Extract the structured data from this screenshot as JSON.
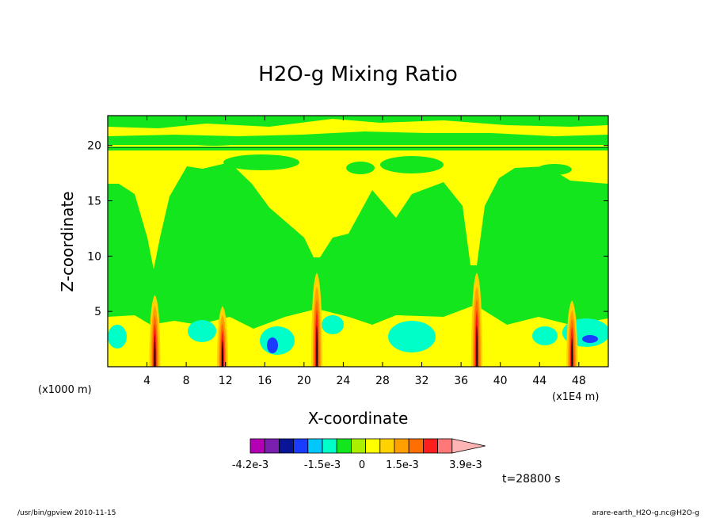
{
  "chart_data": {
    "type": "heatmap",
    "title": "H2O-g Mixing Ratio",
    "xlabel": "X-coordinate",
    "ylabel": "Z-coordinate",
    "x_unit_left": "(x1000 m)",
    "x_unit_right": "(x1E4 m)",
    "x_ticks": [
      4,
      8,
      12,
      16,
      20,
      24,
      28,
      32,
      36,
      40,
      44,
      48
    ],
    "y_ticks": [
      5,
      10,
      15,
      20
    ],
    "xlim": [
      0,
      51
    ],
    "ylim": [
      0,
      22.7
    ],
    "grid": false,
    "colorbar": {
      "colors": [
        "#b400b4",
        "#7a1fb0",
        "#0a1496",
        "#1a3cff",
        "#00c8ff",
        "#00ffc8",
        "#14e61e",
        "#aaee00",
        "#ffff00",
        "#ffd200",
        "#ffa000",
        "#ff6e00",
        "#ff1e1e",
        "#ff7878",
        "#ffb4b4"
      ],
      "labels": [
        "-4.2e-3",
        "-1.5e-3",
        "0",
        "1.5e-3",
        "3.9e-3"
      ]
    },
    "time_label": "t=28800 s",
    "columns": [
      {
        "x": 4.8,
        "top": 6.5
      },
      {
        "x": 11.7,
        "top": 5.5
      },
      {
        "x": 21.3,
        "top": 8.5
      },
      {
        "x": 37.6,
        "top": 8.5
      },
      {
        "x": 47.3,
        "top": 6.0
      }
    ]
  },
  "footer": {
    "left": "/usr/bin/gpview  2010-11-15",
    "right": "arare-earth_H2O-g.nc@H2O-g"
  }
}
